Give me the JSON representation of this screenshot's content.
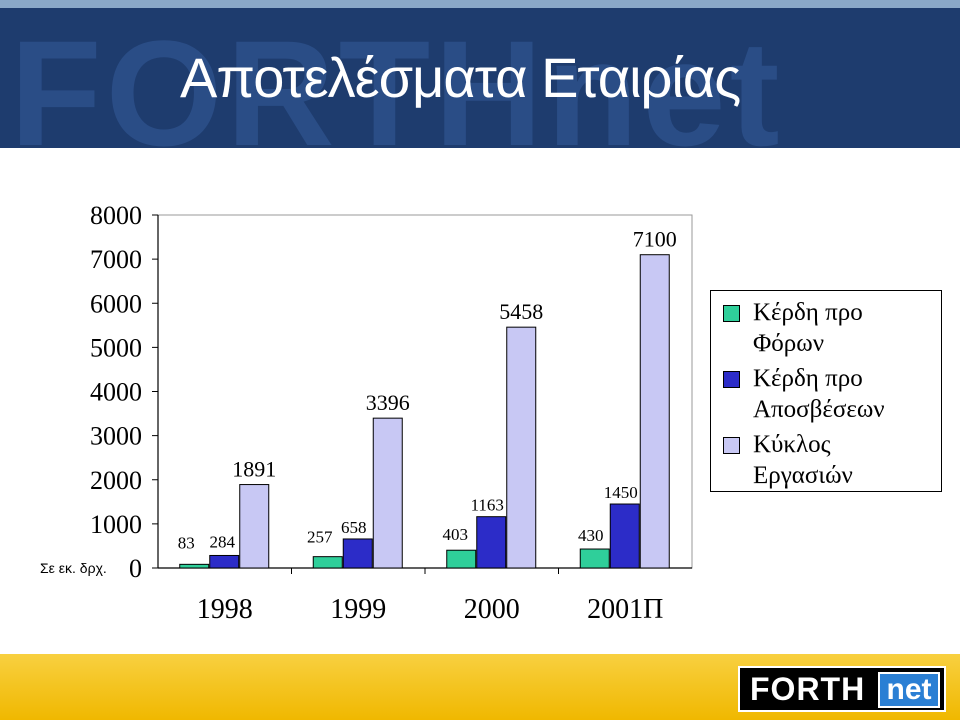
{
  "header": {
    "title": "Αποτελέσματα Εταιρίας",
    "watermark": "FORTHnet"
  },
  "chart_data": {
    "type": "bar",
    "units_label": "Σε εκ. δρχ.",
    "categories": [
      "1998",
      "1999",
      "2000",
      "2001Π"
    ],
    "ylim": [
      0,
      8000
    ],
    "yticks": [
      "0",
      "1000",
      "2000",
      "3000",
      "4000",
      "5000",
      "6000",
      "7000",
      "8000"
    ],
    "legend_position": "right",
    "grid": false,
    "series": [
      {
        "name": "Κέρδη προ Φόρων",
        "color": "#2fcf9a",
        "values": [
          83,
          257,
          403,
          430
        ]
      },
      {
        "name": "Κέρδη προ Αποσβέσεων",
        "color": "#2c2cc8",
        "values": [
          284,
          658,
          1163,
          1450
        ]
      },
      {
        "name": "Κύκλος Εργασιών",
        "color": "#c8c8f4",
        "values": [
          1891,
          3396,
          5458,
          7100
        ]
      }
    ]
  },
  "legend": {
    "items": [
      {
        "line1": "Κέρδη προ",
        "line2": "Φόρων"
      },
      {
        "line1": "Κέρδη προ",
        "line2": "Αποσβέσεων"
      },
      {
        "line1": "Κύκλος",
        "line2": "Εργασιών"
      }
    ]
  },
  "footer": {
    "logo_forth": "FORTH",
    "logo_net": "net"
  }
}
